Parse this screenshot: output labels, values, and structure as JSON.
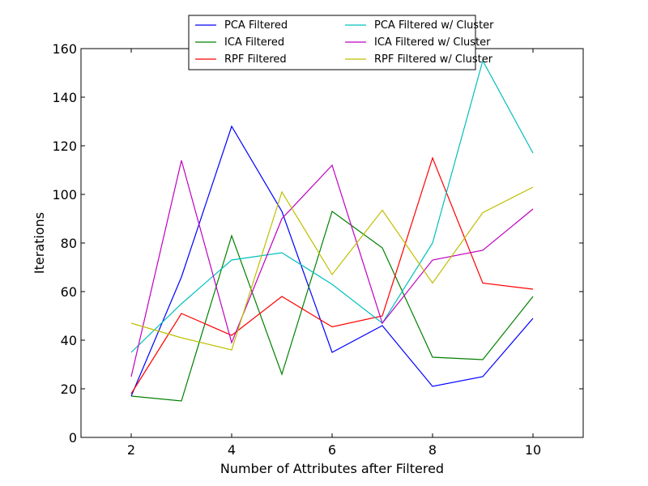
{
  "chart_data": {
    "type": "line",
    "xlabel": "Number of Attributes after Filtered",
    "ylabel": "Iterations",
    "xlim": [
      1,
      11
    ],
    "ylim": [
      0,
      160
    ],
    "xticks": [
      2,
      4,
      6,
      8,
      10
    ],
    "yticks": [
      0,
      20,
      40,
      60,
      80,
      100,
      120,
      140,
      160
    ],
    "grid": false,
    "legend_position": "top-center",
    "x": [
      2,
      3,
      4,
      5,
      6,
      7,
      8,
      9,
      10
    ],
    "series": [
      {
        "name": "PCA Filtered",
        "color": "#0000ff",
        "values": [
          17,
          66,
          128,
          93,
          35,
          46,
          21,
          25,
          49
        ]
      },
      {
        "name": "ICA Filtered",
        "color": "#008000",
        "values": [
          17,
          15,
          83,
          26,
          93,
          78,
          33,
          32,
          58
        ]
      },
      {
        "name": "RPF Filtered",
        "color": "#ff0000",
        "values": [
          18,
          51,
          42,
          58,
          45.5,
          50,
          115,
          63.5,
          61
        ]
      },
      {
        "name": "PCA Filtered w/ Cluster",
        "color": "#00bfbf",
        "values": [
          35,
          55,
          73,
          76,
          63,
          47,
          80,
          155,
          117
        ]
      },
      {
        "name": "ICA Filtered w/ Cluster",
        "color": "#bf00bf",
        "values": [
          25,
          114,
          39,
          90,
          112,
          47,
          73,
          77,
          94
        ]
      },
      {
        "name": "RPF Filtered w/ Cluster",
        "color": "#bfbf00",
        "values": [
          47,
          41,
          36,
          101,
          67,
          93.5,
          63.5,
          92.5,
          103
        ]
      }
    ]
  }
}
